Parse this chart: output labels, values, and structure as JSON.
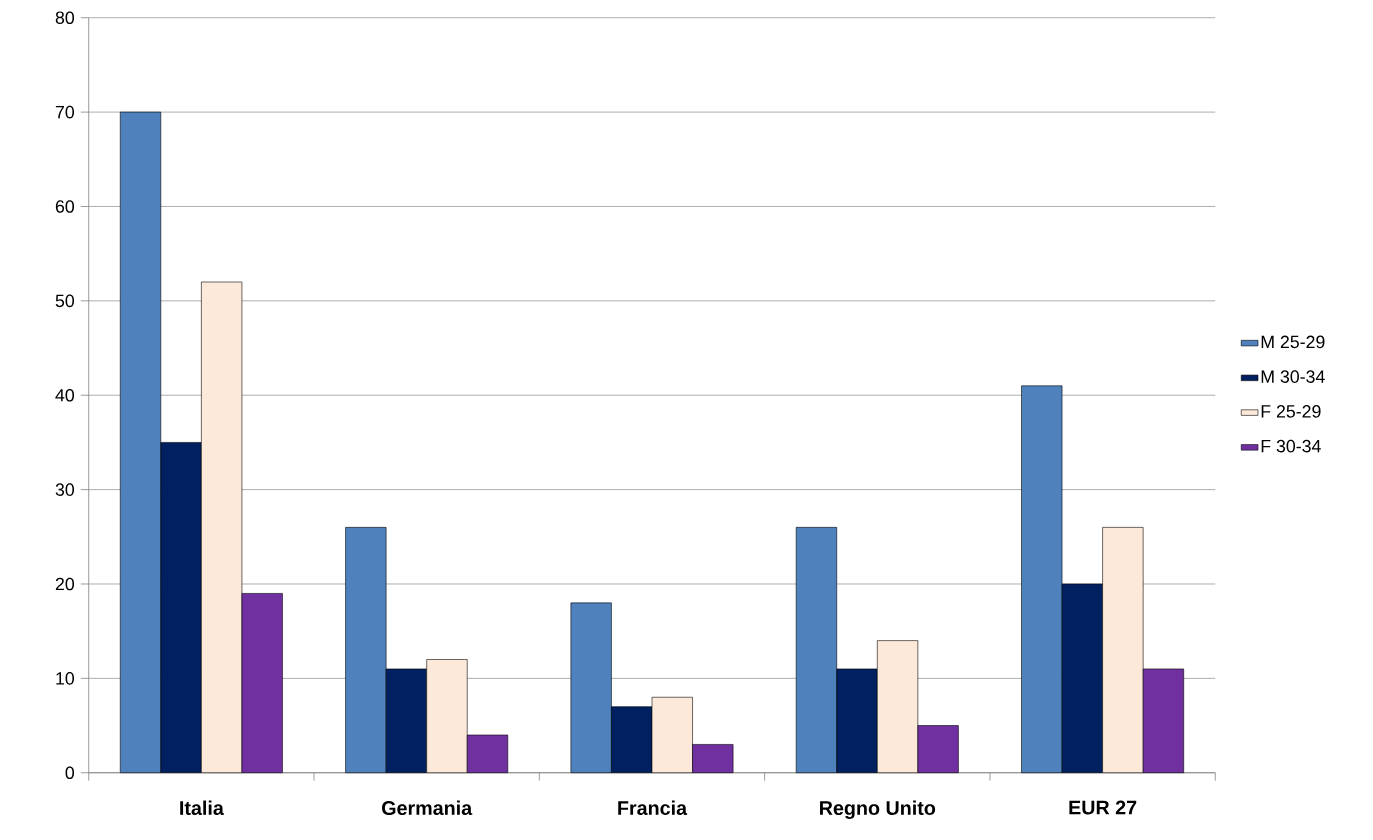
{
  "chart_data": {
    "type": "bar",
    "categories": [
      "Italia",
      "Germania",
      "Francia",
      "Regno Unito",
      "EUR 27"
    ],
    "series": [
      {
        "name": "M 25-29",
        "color": "#4f81bd",
        "values": [
          70,
          26,
          18,
          26,
          41
        ]
      },
      {
        "name": "M 30-34",
        "color": "#002060",
        "values": [
          35,
          11,
          7,
          11,
          20
        ]
      },
      {
        "name": "F 25-29",
        "color": "#fde9d9",
        "values": [
          52,
          12,
          8,
          14,
          26
        ]
      },
      {
        "name": "F 30-34",
        "color": "#7030a0",
        "values": [
          19,
          4,
          3,
          5,
          11
        ]
      }
    ],
    "ylim": [
      0,
      80
    ],
    "yticks": [
      0,
      10,
      20,
      30,
      40,
      50,
      60,
      70,
      80
    ],
    "grid": "y",
    "legend": "right"
  }
}
